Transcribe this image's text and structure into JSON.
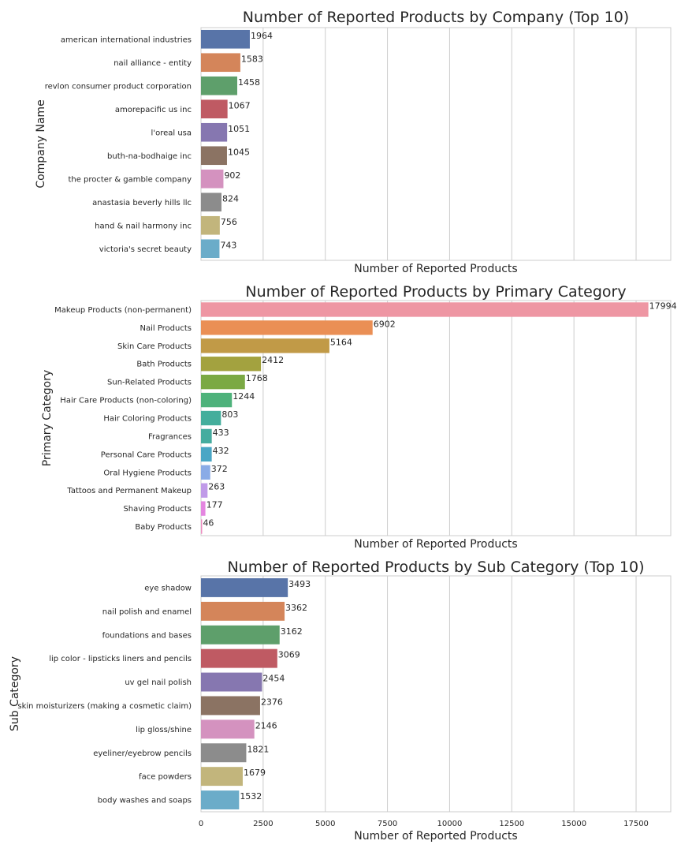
{
  "chart_data": [
    {
      "type": "bar",
      "orientation": "horizontal",
      "title": "Number of Reported Products by Company (Top 10)",
      "xlabel": "Number of Reported Products",
      "ylabel": "Company Name",
      "xlim": [
        0,
        18894
      ],
      "grid": "vertical",
      "show_xticks": false,
      "categories": [
        "american international industries",
        "nail alliance - entity",
        "revlon consumer product corporation",
        "amorepacific us inc",
        "l'oreal usa",
        "buth-na-bodhaige inc",
        "the procter & gamble company",
        "anastasia beverly hills llc",
        "hand & nail harmony inc",
        "victoria's secret beauty"
      ],
      "values": [
        1964,
        1583,
        1458,
        1067,
        1051,
        1045,
        902,
        824,
        756,
        743
      ],
      "colors": [
        "#5874a8",
        "#d4855a",
        "#5e9f6b",
        "#bf5a63",
        "#8677b0",
        "#8b7363",
        "#d492bf",
        "#8c8c8c",
        "#c2b57c",
        "#6bacc9"
      ]
    },
    {
      "type": "bar",
      "orientation": "horizontal",
      "title": "Number of Reported Products by Primary Category",
      "xlabel": "Number of Reported Products",
      "ylabel": "Primary Category",
      "xlim": [
        0,
        18894
      ],
      "grid": "vertical",
      "show_xticks": false,
      "categories": [
        "Makeup Products (non-permanent)",
        "Nail Products",
        "Skin Care Products ",
        "Bath Products",
        "Sun-Related Products",
        "Hair Care Products (non-coloring)",
        "Hair Coloring Products",
        "Fragrances",
        "Personal Care Products",
        "Oral Hygiene Products",
        "Tattoos and Permanent Makeup",
        "Shaving Products",
        "Baby Products"
      ],
      "values": [
        17994,
        6902,
        5164,
        2412,
        1768,
        1244,
        803,
        433,
        432,
        372,
        263,
        177,
        46
      ],
      "colors": [
        "#ee96a3",
        "#ea8f55",
        "#c19a47",
        "#a3a23f",
        "#7ba944",
        "#4eb27b",
        "#44ae9c",
        "#46ac9f",
        "#4aa6c5",
        "#8aabe6",
        "#c09ae8",
        "#e486e0",
        "#ee8cc0"
      ]
    },
    {
      "type": "bar",
      "orientation": "horizontal",
      "title": "Number of Reported Products by Sub Category (Top 10)",
      "xlabel": "Number of Reported Products",
      "ylabel": "Sub Category",
      "xlim": [
        0,
        18894
      ],
      "grid": "vertical",
      "show_xticks": true,
      "xticks": [
        0,
        2500,
        5000,
        7500,
        10000,
        12500,
        15000,
        17500
      ],
      "categories": [
        "eye shadow",
        "nail polish and enamel",
        "foundations and bases",
        "lip color - lipsticks liners and pencils",
        "uv gel nail polish",
        "skin moisturizers (making a cosmetic claim)",
        "lip gloss/shine",
        "eyeliner/eyebrow pencils",
        "face powders",
        "body washes and soaps"
      ],
      "values": [
        3493,
        3362,
        3162,
        3069,
        2454,
        2376,
        2146,
        1821,
        1679,
        1532
      ],
      "colors": [
        "#5874a8",
        "#d4855a",
        "#5e9f6b",
        "#bf5a63",
        "#8677b0",
        "#8b7363",
        "#d492bf",
        "#8c8c8c",
        "#c2b57c",
        "#6bacc9"
      ]
    }
  ]
}
